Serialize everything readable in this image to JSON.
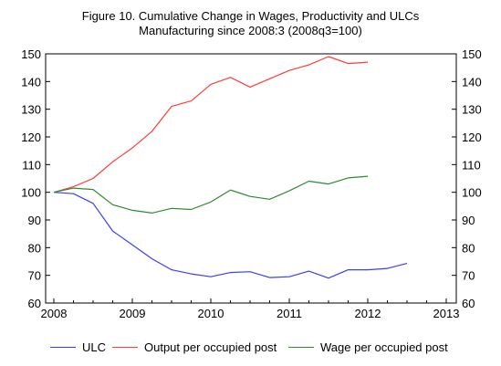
{
  "chart_data": {
    "type": "line",
    "title": "Figure 10. Cumulative Change in Wages, Productivity and ULCs",
    "subtitle": "Manufacturing since 2008:3 (2008q3=100)",
    "xlabel": "",
    "ylabel": "",
    "x_ticks": [
      "2008",
      "2009",
      "2010",
      "2011",
      "2012",
      "2013"
    ],
    "y_ticks_left": [
      "150",
      "140",
      "130",
      "120",
      "110",
      "100",
      "90",
      "80",
      "70",
      "60"
    ],
    "y_ticks_right": [
      "150",
      "140",
      "130",
      "120",
      "110",
      "100",
      "90",
      "80",
      "70",
      "60"
    ],
    "xlim": [
      2008.0,
      2013.0
    ],
    "ylim": [
      60,
      150
    ],
    "grid": false,
    "legend_position": "bottom",
    "series": [
      {
        "name": "ULC",
        "color": "#3b3bff",
        "x": [
          2008.0,
          2008.25,
          2008.5,
          2008.75,
          2009.0,
          2009.25,
          2009.5,
          2009.75,
          2010.0,
          2010.25,
          2010.5,
          2010.75,
          2011.0,
          2011.25,
          2011.5,
          2011.75,
          2012.0,
          2012.25,
          2012.5,
          2012.75
        ],
        "values": [
          100,
          99.5,
          96,
          86,
          81,
          76,
          72,
          70.5,
          69.5,
          71,
          71.3,
          69.2,
          69.5,
          71.5,
          69,
          72,
          72,
          72.5,
          74.3,
          null
        ]
      },
      {
        "name": "Output per occupied post",
        "color": "#ff3b3b",
        "x": [
          2008.0,
          2008.25,
          2008.5,
          2008.75,
          2009.0,
          2009.25,
          2009.5,
          2009.75,
          2010.0,
          2010.25,
          2010.5,
          2010.75,
          2011.0,
          2011.25,
          2011.5,
          2011.75,
          2012.0,
          2012.25
        ],
        "values": [
          100,
          102,
          105,
          111,
          116,
          122,
          131,
          133,
          139,
          141.5,
          138,
          141,
          144,
          146,
          149,
          146.5,
          147,
          null
        ]
      },
      {
        "name": "Wage per occupied post",
        "color": "#2e8b2e",
        "x": [
          2008.0,
          2008.25,
          2008.5,
          2008.75,
          2009.0,
          2009.25,
          2009.5,
          2009.75,
          2010.0,
          2010.25,
          2010.5,
          2010.75,
          2011.0,
          2011.25,
          2011.5,
          2011.75,
          2012.0,
          2012.25
        ],
        "values": [
          100,
          101.5,
          101,
          95.5,
          93.5,
          92.5,
          94.2,
          93.8,
          96.5,
          100.8,
          98.5,
          97.5,
          100.5,
          104,
          103,
          105.2,
          105.8,
          null
        ]
      }
    ]
  }
}
